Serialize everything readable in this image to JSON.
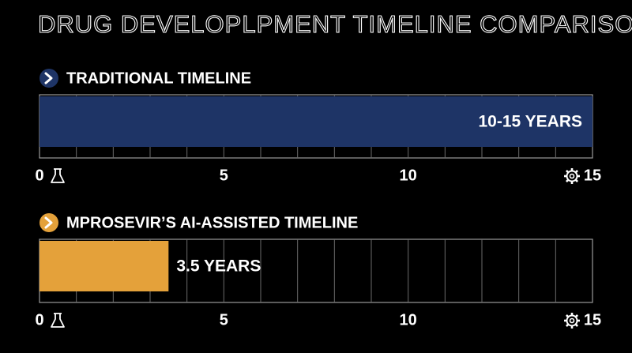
{
  "title": "DRUG DEVELOPLPMENT TIMELINE COMPARISON",
  "chart_data": [
    {
      "type": "bar",
      "orientation": "horizontal",
      "title": "TRADITIONAL TIMELINE",
      "values": [
        15
      ],
      "value_labels": [
        "10-15 YEARS"
      ],
      "value_label_position": "inside-end",
      "color": "#1e3466",
      "icon_color": "#1e3466",
      "xlim": [
        0,
        15
      ],
      "xticks": [
        0,
        5,
        10,
        15
      ],
      "xminor": [
        1,
        2,
        3,
        4,
        5,
        6,
        7,
        8,
        9,
        10,
        11,
        12,
        13,
        14
      ],
      "grid": true
    },
    {
      "type": "bar",
      "orientation": "horizontal",
      "title": "MPROSEVIR’S AI-ASSISTED TIMELINE",
      "values": [
        3.5
      ],
      "value_labels": [
        "3.5 YEARS"
      ],
      "value_label_position": "outside-end",
      "color": "#e4a13a",
      "icon_color": "#e4a13a",
      "xlim": [
        0,
        15
      ],
      "xticks": [
        0,
        5,
        10,
        15
      ],
      "xminor": [
        1,
        2,
        3,
        4,
        5,
        6,
        7,
        8,
        9,
        10,
        11,
        12,
        13,
        14
      ],
      "grid": true
    }
  ]
}
